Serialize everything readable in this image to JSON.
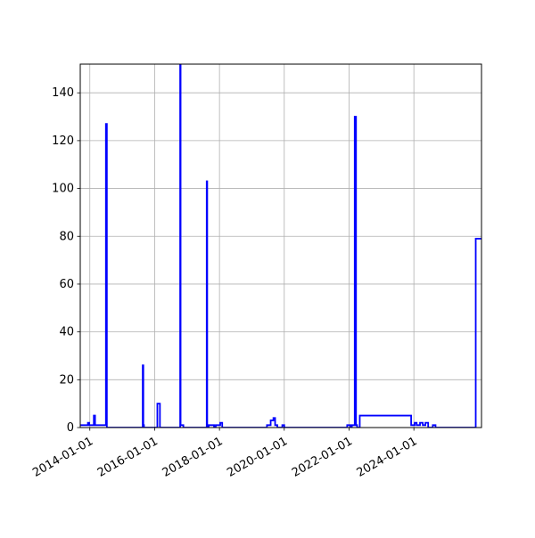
{
  "chart_data": {
    "type": "line",
    "title": "",
    "xlabel": "",
    "ylabel": "",
    "grid": true,
    "x_axis_type": "date",
    "xlim": [
      "2013-09-15",
      "2026-02-01"
    ],
    "ylim": [
      0,
      152
    ],
    "x_ticks": [
      "2014-01-01",
      "2016-01-01",
      "2018-01-01",
      "2020-01-01",
      "2022-01-01",
      "2024-01-01"
    ],
    "y_ticks": [
      0,
      20,
      40,
      60,
      80,
      100,
      120,
      140
    ],
    "series": [
      {
        "color": "#0000ff",
        "step": "post",
        "x": [
          "2013-09-15",
          "2013-12-10",
          "2013-12-25",
          "2014-02-15",
          "2014-03-01",
          "2014-07-01",
          "2014-07-12",
          "2014-08-01",
          "2015-08-20",
          "2015-08-27",
          "2015-09-03",
          "2015-09-20",
          "2016-02-01",
          "2016-03-01",
          "2016-03-20",
          "2016-10-15",
          "2016-10-20",
          "2016-11-20",
          "2017-08-10",
          "2017-08-16",
          "2017-09-01",
          "2017-11-01",
          "2017-11-20",
          "2018-01-10",
          "2018-02-01",
          "2019-06-20",
          "2019-08-01",
          "2019-09-01",
          "2019-09-20",
          "2019-10-15",
          "2019-12-10",
          "2020-01-01",
          "2020-03-20",
          "2020-05-01",
          "2021-12-10",
          "2022-01-15",
          "2022-02-01",
          "2022-03-05",
          "2022-03-20",
          "2022-04-01",
          "2022-05-01",
          "2023-11-15",
          "2023-12-01",
          "2024-01-10",
          "2024-02-01",
          "2024-03-10",
          "2024-04-10",
          "2024-05-10",
          "2024-06-10",
          "2024-08-01",
          "2024-09-01",
          "2024-10-01",
          "2025-11-28",
          "2025-12-05",
          "2026-02-01"
        ],
        "y": [
          1,
          2,
          1,
          5,
          1,
          127,
          0,
          0,
          26,
          1,
          0,
          0,
          10,
          0,
          0,
          153,
          1,
          0,
          103,
          0,
          1,
          0,
          1,
          2,
          0,
          1,
          3,
          4,
          1,
          0,
          1,
          0,
          0,
          0,
          1,
          0,
          1,
          130,
          1,
          0,
          5,
          5,
          1,
          2,
          1,
          2,
          1,
          2,
          0,
          1,
          0,
          0,
          79,
          79,
          79
        ]
      }
    ]
  }
}
